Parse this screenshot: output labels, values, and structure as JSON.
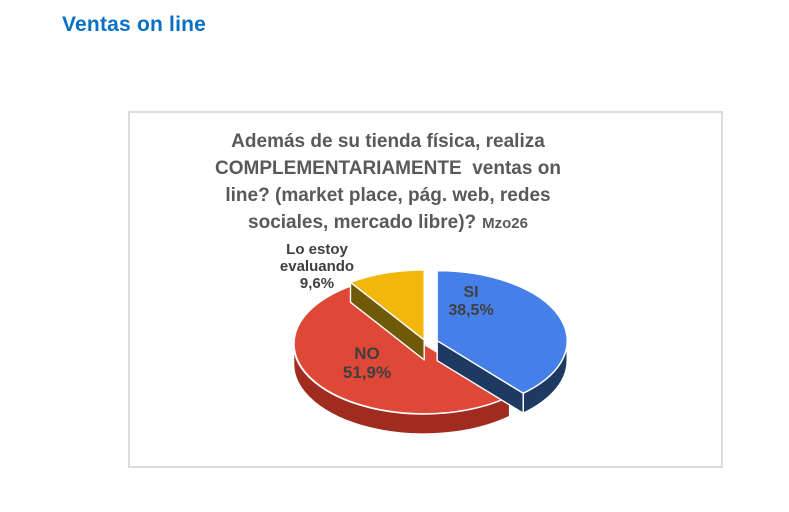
{
  "page": {
    "header": "Ventas on line",
    "header_color": "#0770C5"
  },
  "chart": {
    "title_lines": [
      "Además de su tienda física, realiza",
      "COMPLEMENTARIAMENTE  ventas on",
      "line? (market place, pág. web, redes",
      "sociales, mercado libre)?"
    ],
    "title_suffix": "Mzo26"
  },
  "chart_data": {
    "type": "pie",
    "style": "3d-exploded",
    "title": "Además de su tienda física, realiza COMPLEMENTARIAMENTE ventas on line? (market place, pág. web, redes sociales, mercado libre)? Mzo26",
    "categories": [
      "SI",
      "NO",
      "Lo estoy evaluando"
    ],
    "values": [
      38.5,
      51.9,
      9.6
    ],
    "legend": "none",
    "data_labels": "category-and-percent",
    "rotation_start_deg": 90,
    "direction": "clockwise",
    "slices": [
      {
        "label": "SI",
        "value": 38.5,
        "pct_label": "38,5%",
        "color": "#4580EA",
        "side_color": "#1E3A63",
        "explode": 12
      },
      {
        "label": "NO",
        "value": 51.9,
        "pct_label": "51,9%",
        "color": "#DF4837",
        "side_color": "#A02C20",
        "explode": 3
      },
      {
        "label": "Lo estoy evaluando",
        "value": 9.6,
        "pct_label": "9,6%",
        "color": "#F3B70C",
        "side_color": "#6E5A07",
        "explode": 6
      }
    ]
  }
}
